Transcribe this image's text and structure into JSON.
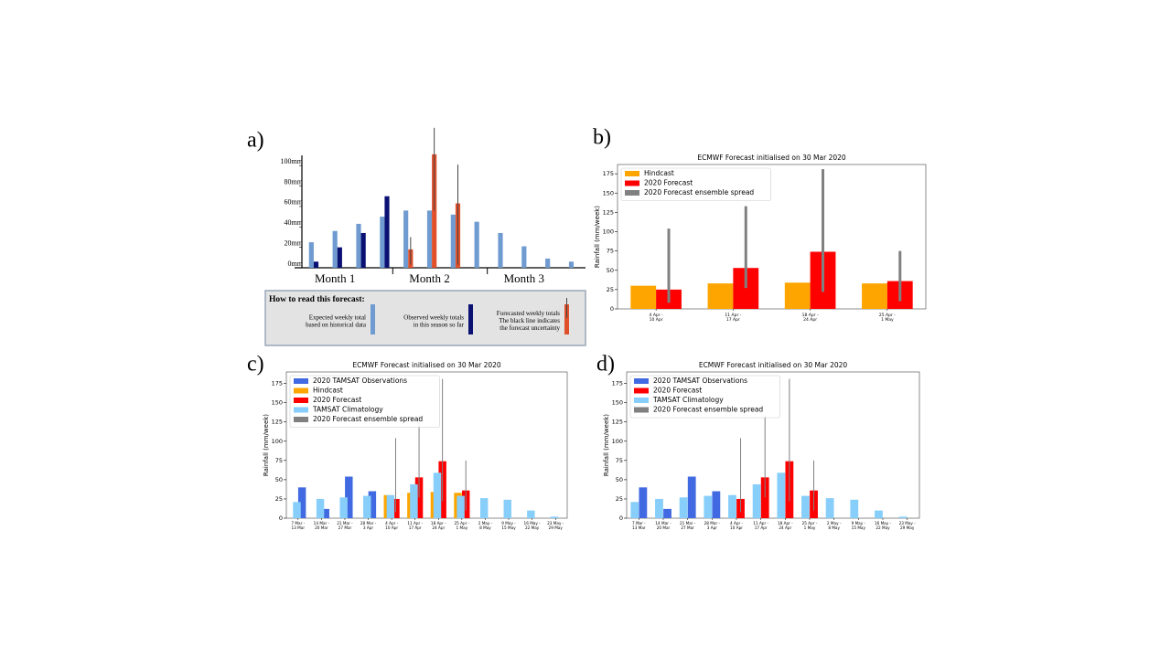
{
  "chart_data": [
    {
      "type": "bar",
      "panel_label": "a)",
      "categories": [
        null,
        null,
        null,
        null,
        null,
        null,
        null,
        null,
        null,
        null,
        null,
        null
      ],
      "month_labels": [
        "Month 1",
        "Month 2",
        "Month 3"
      ],
      "legend": "below",
      "legend_title": "How to read this forecast:",
      "ylim": [
        0,
        110
      ],
      "yticks": [
        {
          "value": 0,
          "label": "0mm"
        },
        {
          "value": 20,
          "label": "20mm"
        },
        {
          "value": 40,
          "label": "40mm"
        },
        {
          "value": 60,
          "label": "60mm"
        },
        {
          "value": 80,
          "label": "80mm"
        },
        {
          "value": 100,
          "label": "100mm"
        }
      ],
      "series": [
        {
          "name": "Expected weekly total\nbased on historical data",
          "color": "#6f9bd1",
          "values": [
            25,
            36,
            43,
            50,
            56,
            56,
            52,
            45,
            34,
            21,
            9,
            6
          ]
        },
        {
          "name": "Observed weekly totals\nin this season so far",
          "color": "#0a1172",
          "values": [
            6,
            20,
            34,
            70,
            null,
            null,
            null,
            null,
            null,
            null,
            null,
            null
          ]
        },
        {
          "name": "Forecasted weekly totals\nThe black line indicates\nthe forecast uncertainty",
          "color": "#e0502a",
          "values": [
            null,
            null,
            null,
            null,
            18,
            111,
            63,
            null,
            null,
            null,
            null,
            null
          ],
          "spread_low": [
            null,
            null,
            null,
            null,
            3,
            56,
            3,
            null,
            null,
            null,
            null,
            null
          ],
          "spread_high": [
            null,
            null,
            null,
            null,
            30,
            137,
            101,
            null,
            null,
            null,
            null,
            null
          ],
          "spread_color": "#444444"
        }
      ]
    },
    {
      "type": "bar",
      "panel_label": "b)",
      "title": "ECMWF Forecast initialised on 30 Mar 2020",
      "y_label": "Rainfall (mm/week)",
      "categories": [
        "4 Apr -\n10 Apr",
        "11 Apr -\n17 Apr",
        "18 Apr -\n24 Apr",
        "25 Apr -\n1 May"
      ],
      "legend": "upper left",
      "ylim": [
        0,
        187
      ],
      "yticks": [
        0,
        25,
        50,
        75,
        100,
        125,
        150,
        175
      ],
      "series": [
        {
          "name": "Hindcast",
          "color": "#ffa500",
          "values": [
            30,
            33,
            34,
            33
          ]
        },
        {
          "name": "2020 Forecast",
          "color": "#ff0000",
          "values": [
            25,
            53,
            74,
            36
          ]
        },
        {
          "name": "2020 Forecast ensemble spread",
          "color": "#808080",
          "low": [
            8,
            27,
            22,
            10
          ],
          "high": [
            104,
            133,
            181,
            75
          ]
        }
      ]
    },
    {
      "type": "bar",
      "panel_label": "c)",
      "title": "ECMWF Forecast initialised on 30 Mar 2020",
      "y_label": "Rainfall (mm/week)",
      "categories": [
        "7 Mar -\n13 Mar",
        "14 Mar -\n20 Mar",
        "21 Mar -\n27 Mar",
        "28 Mar -\n3 Apr",
        "4 Apr -\n10 Apr",
        "11 Apr -\n17 Apr",
        "18 Apr -\n24 Apr",
        "25 Apr -\n1 May",
        "2 May -\n8 May",
        "9 May -\n15 May",
        "16 May -\n22 May",
        "23 May -\n29 May"
      ],
      "legend": "upper left",
      "ylim": [
        0,
        190
      ],
      "yticks": [
        0,
        25,
        50,
        75,
        100,
        125,
        150,
        175
      ],
      "series": [
        {
          "name": "2020 TAMSAT Observations",
          "color": "#4169e1",
          "values": [
            40,
            12,
            54,
            35,
            null,
            null,
            null,
            null,
            null,
            null,
            null,
            null
          ]
        },
        {
          "name": "Hindcast",
          "color": "#ffa500",
          "values": [
            null,
            null,
            null,
            null,
            30,
            33,
            34,
            33,
            null,
            null,
            null,
            null
          ]
        },
        {
          "name": "2020 Forecast",
          "color": "#ff0000",
          "values": [
            null,
            null,
            null,
            null,
            25,
            53,
            74,
            36,
            null,
            null,
            null,
            null
          ]
        },
        {
          "name": "TAMSAT Climatology",
          "color": "#87cefa",
          "values": [
            21,
            25,
            27,
            29,
            30,
            44,
            59,
            29,
            26,
            24,
            10,
            2
          ]
        },
        {
          "name": "2020 Forecast ensemble spread",
          "color": "#808080",
          "low": [
            null,
            null,
            null,
            null,
            8,
            27,
            22,
            10,
            null,
            null,
            null,
            null
          ],
          "high": [
            null,
            null,
            null,
            null,
            104,
            133,
            181,
            75,
            null,
            null,
            null,
            null
          ]
        }
      ]
    },
    {
      "type": "bar",
      "panel_label": "d)",
      "title": "ECMWF Forecast initialised on 30 Mar 2020",
      "y_label": "Rainfall (mm/week)",
      "categories": [
        "7 Mar -\n13 Mar",
        "14 Mar -\n20 Mar",
        "21 Mar -\n27 Mar",
        "28 Mar -\n3 Apr",
        "4 Apr -\n10 Apr",
        "11 Apr -\n17 Apr",
        "18 Apr -\n24 Apr",
        "25 Apr -\n1 May",
        "2 May -\n8 May",
        "9 May -\n15 May",
        "16 May -\n22 May",
        "23 May -\n29 May"
      ],
      "legend": "upper left",
      "ylim": [
        0,
        190
      ],
      "yticks": [
        0,
        25,
        50,
        75,
        100,
        125,
        150,
        175
      ],
      "series": [
        {
          "name": "2020 TAMSAT Observations",
          "color": "#4169e1",
          "values": [
            40,
            12,
            54,
            35,
            null,
            null,
            null,
            null,
            null,
            null,
            null,
            null
          ]
        },
        {
          "name": "2020 Forecast",
          "color": "#ff0000",
          "values": [
            null,
            null,
            null,
            null,
            25,
            53,
            74,
            36,
            null,
            null,
            null,
            null
          ]
        },
        {
          "name": "TAMSAT Climatology",
          "color": "#87cefa",
          "values": [
            21,
            25,
            27,
            29,
            30,
            44,
            59,
            29,
            26,
            24,
            10,
            2
          ]
        },
        {
          "name": "2020 Forecast ensemble spread",
          "color": "#808080",
          "low": [
            null,
            null,
            null,
            null,
            8,
            27,
            22,
            10,
            null,
            null,
            null,
            null
          ],
          "high": [
            null,
            null,
            null,
            null,
            104,
            133,
            181,
            75,
            null,
            null,
            null,
            null
          ]
        }
      ]
    }
  ]
}
